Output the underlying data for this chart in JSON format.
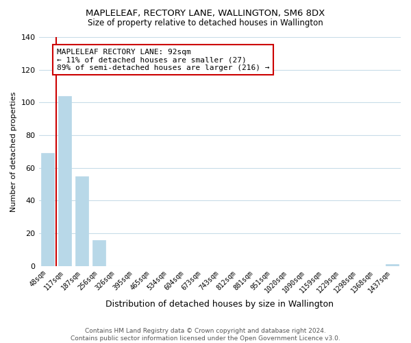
{
  "title": "MAPLELEAF, RECTORY LANE, WALLINGTON, SM6 8DX",
  "subtitle": "Size of property relative to detached houses in Wallington",
  "xlabel": "Distribution of detached houses by size in Wallington",
  "ylabel": "Number of detached properties",
  "bar_labels": [
    "48sqm",
    "117sqm",
    "187sqm",
    "256sqm",
    "326sqm",
    "395sqm",
    "465sqm",
    "534sqm",
    "604sqm",
    "673sqm",
    "743sqm",
    "812sqm",
    "881sqm",
    "951sqm",
    "1020sqm",
    "1090sqm",
    "1159sqm",
    "1229sqm",
    "1298sqm",
    "1368sqm",
    "1437sqm"
  ],
  "bar_values": [
    69,
    104,
    55,
    16,
    0,
    0,
    0,
    0,
    0,
    0,
    0,
    0,
    0,
    0,
    0,
    0,
    0,
    0,
    0,
    0,
    1
  ],
  "bar_color": "#b8d8e8",
  "marker_line_color": "#cc0000",
  "annotation_line1": "MAPLELEAF RECTORY LANE: 92sqm",
  "annotation_line2": "← 11% of detached houses are smaller (27)",
  "annotation_line3": "89% of semi-detached houses are larger (216) →",
  "annotation_box_color": "#ffffff",
  "annotation_box_edgecolor": "#cc0000",
  "ylim": [
    0,
    140
  ],
  "yticks": [
    0,
    20,
    40,
    60,
    80,
    100,
    120,
    140
  ],
  "footer_line1": "Contains HM Land Registry data © Crown copyright and database right 2024.",
  "footer_line2": "Contains public sector information licensed under the Open Government Licence v3.0.",
  "background_color": "#ffffff",
  "grid_color": "#c8dce8"
}
